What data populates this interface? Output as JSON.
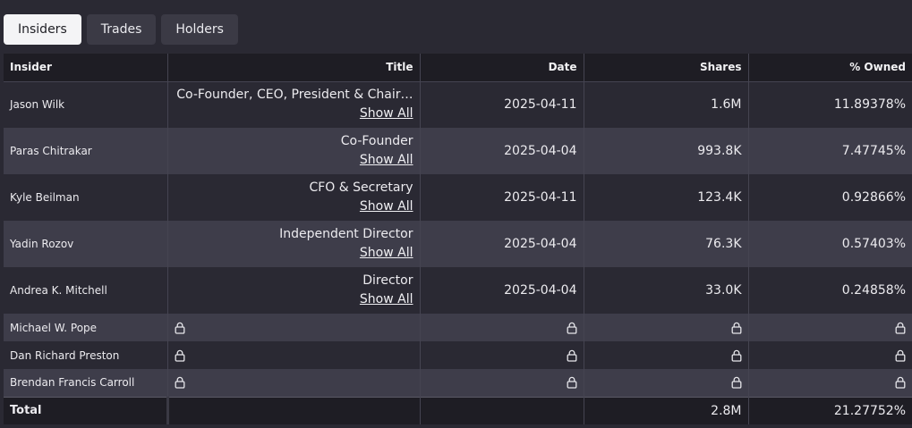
{
  "tabs": [
    {
      "label": "Insiders",
      "active": true
    },
    {
      "label": "Trades",
      "active": false
    },
    {
      "label": "Holders",
      "active": false
    }
  ],
  "table": {
    "headers": [
      "Insider",
      "Title",
      "Date",
      "Shares",
      "% Owned"
    ],
    "show_all_label": "Show All",
    "rows": [
      {
        "insider": "Jason Wilk",
        "title": "Co-Founder, CEO, President & Chair…",
        "date": "2025-04-11",
        "shares": "1.6M",
        "owned": "11.89378%"
      },
      {
        "insider": "Paras Chitrakar",
        "title": "Co-Founder",
        "date": "2025-04-04",
        "shares": "993.8K",
        "owned": "7.47745%"
      },
      {
        "insider": "Kyle Beilman",
        "title": "CFO & Secretary",
        "date": "2025-04-11",
        "shares": "123.4K",
        "owned": "0.92866%"
      },
      {
        "insider": "Yadin Rozov",
        "title": "Independent Director",
        "date": "2025-04-04",
        "shares": "76.3K",
        "owned": "0.57403%"
      },
      {
        "insider": "Andrea K. Mitchell",
        "title": "Director",
        "date": "2025-04-04",
        "shares": "33.0K",
        "owned": "0.24858%"
      }
    ],
    "locked_rows": [
      {
        "insider": "Michael W. Pope"
      },
      {
        "insider": "Dan Richard Preston"
      },
      {
        "insider": "Brendan Francis Carroll"
      }
    ],
    "total": {
      "label": "Total",
      "shares": "2.8M",
      "owned": "21.27752%"
    }
  },
  "icons": {
    "locked": "lock-icon"
  },
  "colors": {
    "background": "#2a2933",
    "header": "#1e1d24",
    "row_alt": "#3e3d4a",
    "tab": "#3b3a45",
    "tab_active": "#f4f4f6"
  }
}
